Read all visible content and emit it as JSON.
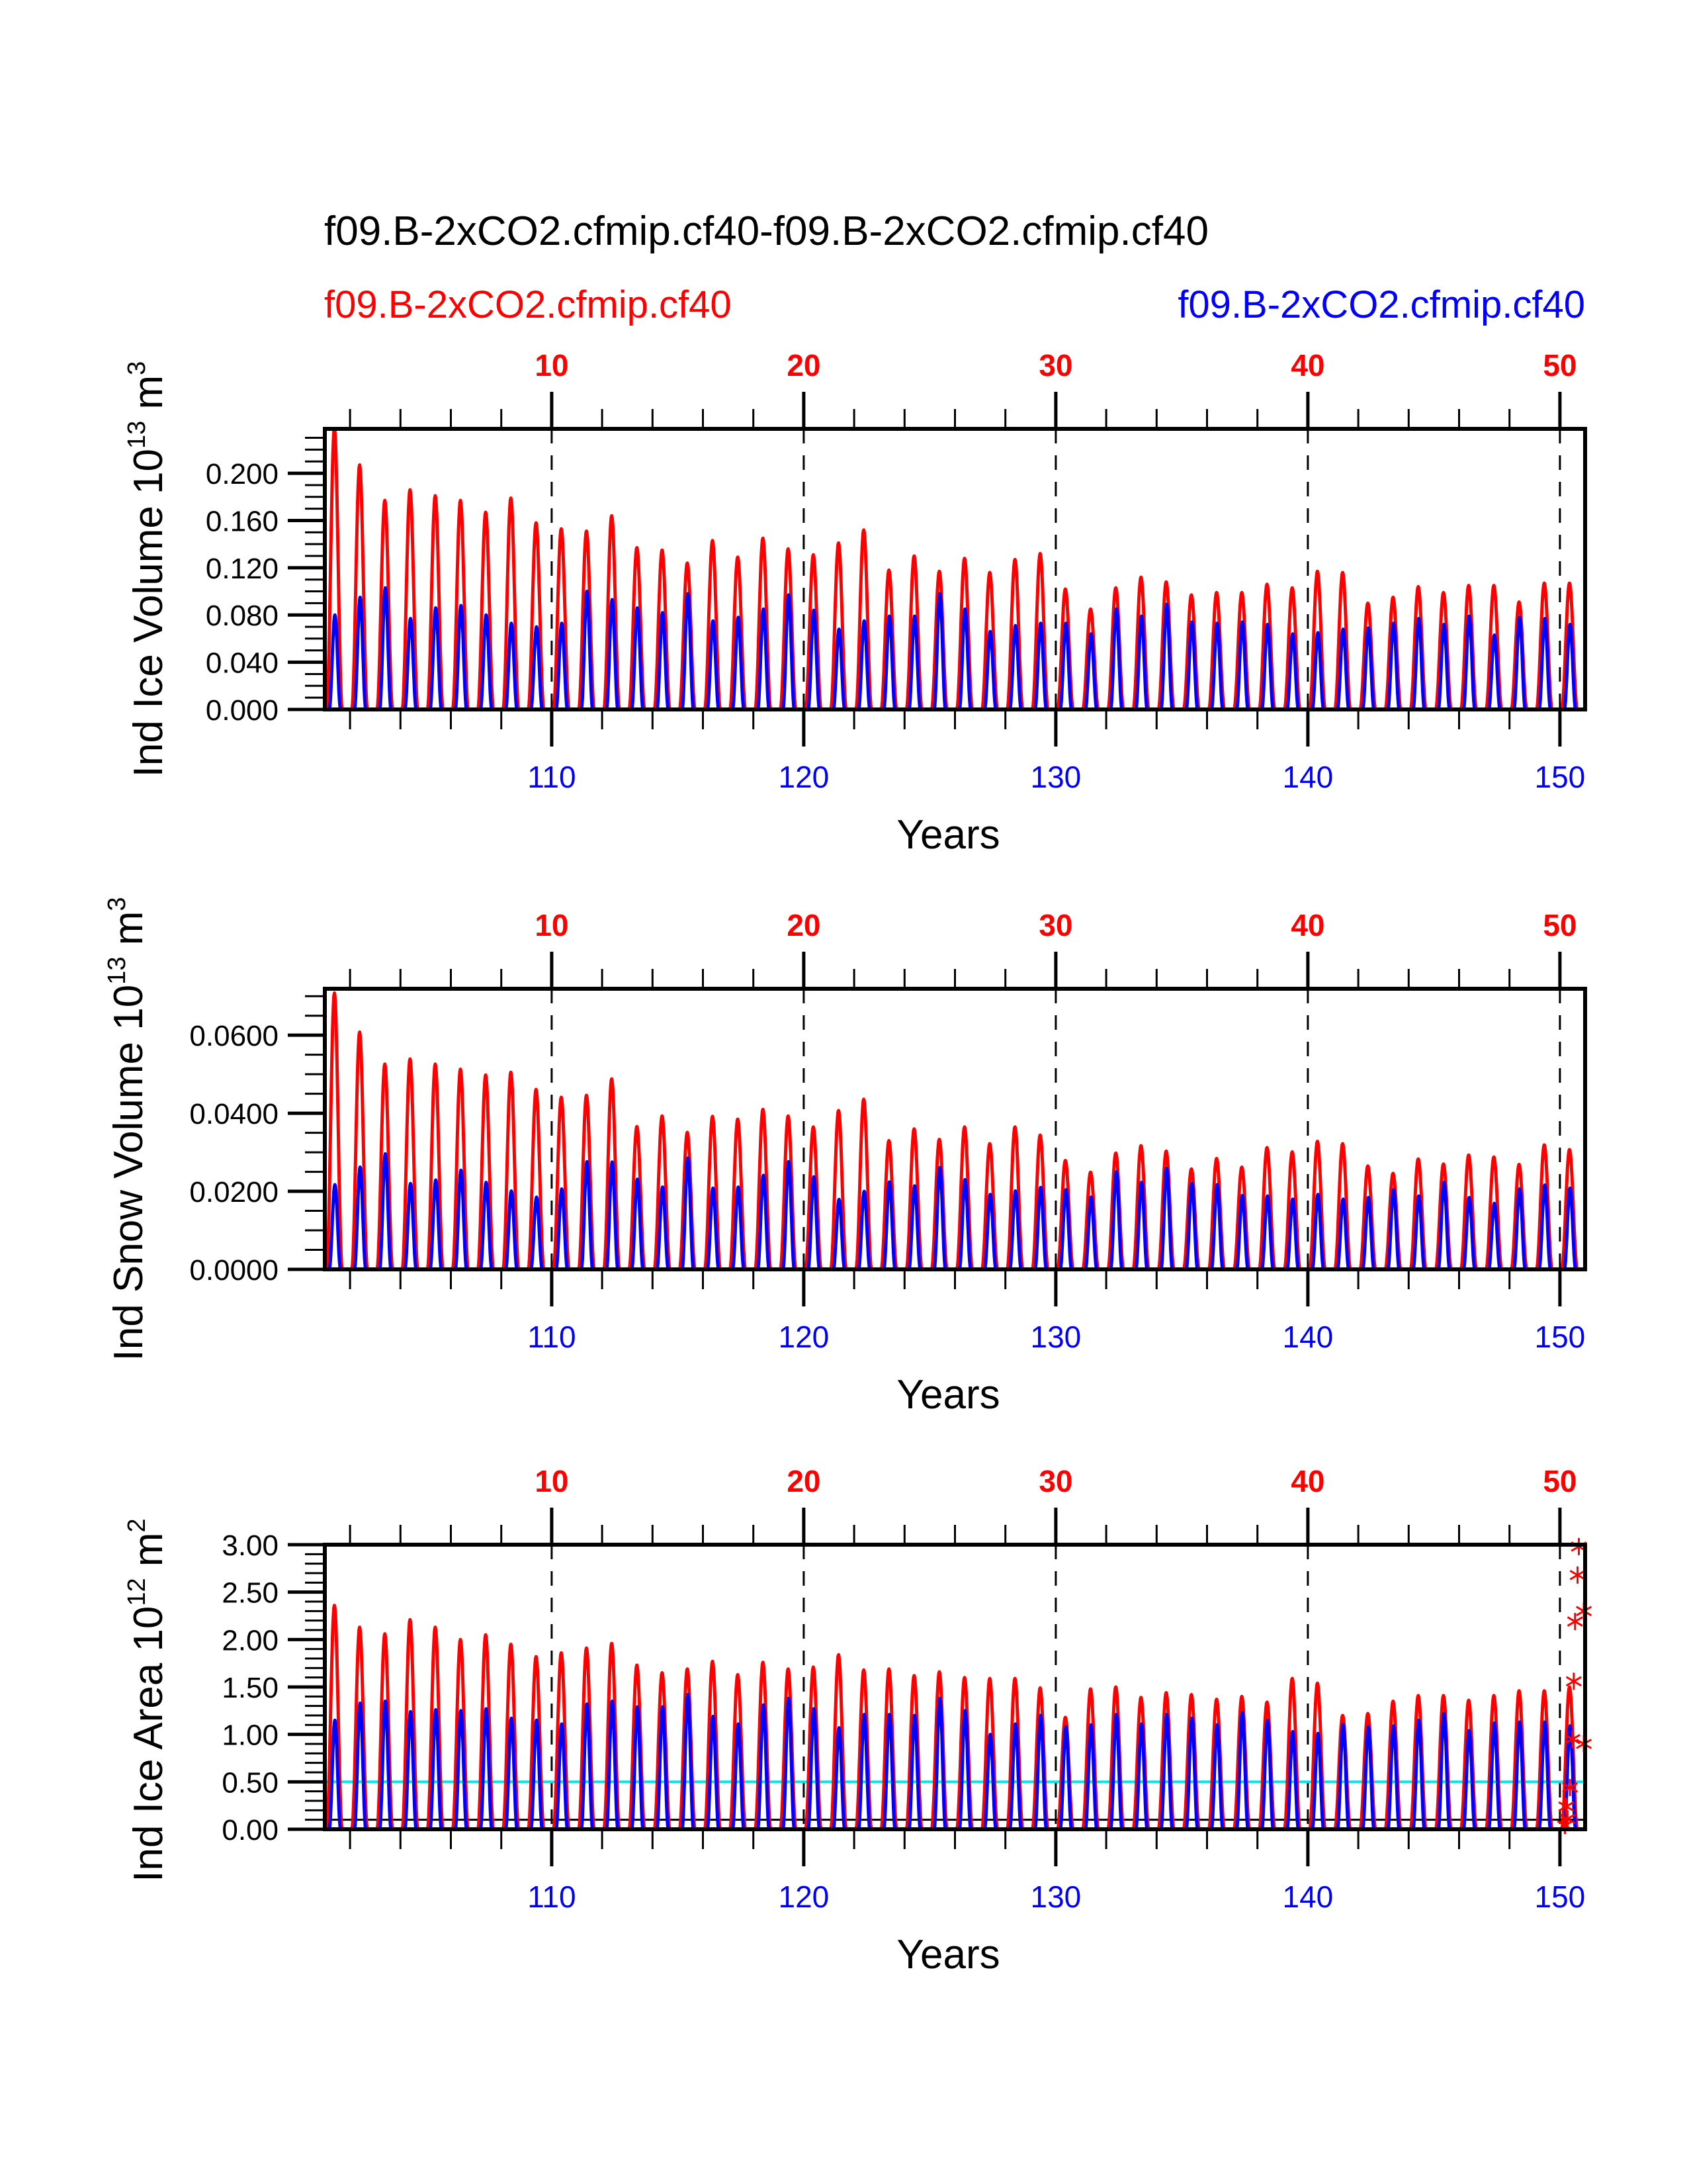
{
  "title": "f09.B-2xCO2.cfmip.cf40-f09.B-2xCO2.cfmip.cf40",
  "legend": {
    "left": {
      "label": "f09.B-2xCO2.cfmip.cf40",
      "color": "#ff0000"
    },
    "right": {
      "label": "f09.B-2xCO2.cfmip.cf40",
      "color": "#0000ff"
    }
  },
  "chart_data": [
    {
      "type": "line",
      "title": "",
      "ylabel": "Ind Ice Volume 10^13 m^3",
      "ylabel_parts": {
        "base": "Ind Ice Volume 10",
        "exp": "13",
        "unit": " m",
        "unit_exp": "3"
      },
      "xlabel": "Years",
      "xlim": [
        101,
        151
      ],
      "ylim": [
        0,
        0.2376
      ],
      "yticks": [
        "0.000",
        "0.040",
        "0.080",
        "0.120",
        "0.160",
        "0.200"
      ],
      "ytick_values": [
        0,
        0.04,
        0.08,
        0.12,
        0.16,
        0.2
      ],
      "yminor_step": 0.01,
      "top_axis": {
        "color": "#ff0000",
        "ticks": [
          "10",
          "20",
          "30",
          "40",
          "50"
        ],
        "tick_years": [
          110,
          120,
          130,
          140,
          150
        ]
      },
      "bottom_axis": {
        "color": "#0000ff",
        "ticks": [
          "110",
          "120",
          "130",
          "140",
          "150"
        ],
        "tick_values": [
          110,
          120,
          130,
          140,
          150
        ]
      },
      "dashed_vlines": [
        110,
        120,
        130,
        140,
        150
      ],
      "series": [
        {
          "name": "f09.B-2xCO2.cfmip.cf40 (red)",
          "color": "#ff0000",
          "annual_peaks": [
            0.238,
            0.207,
            0.177,
            0.186,
            0.181,
            0.177,
            0.167,
            0.179,
            0.158,
            0.153,
            0.151,
            0.164,
            0.137,
            0.135,
            0.124,
            0.143,
            0.129,
            0.145,
            0.136,
            0.131,
            0.141,
            0.152,
            0.118,
            0.13,
            0.117,
            0.128,
            0.116,
            0.127,
            0.132,
            0.102,
            0.085,
            0.103,
            0.112,
            0.108,
            0.097,
            0.099,
            0.099,
            0.106,
            0.103,
            0.117,
            0.116,
            0.09,
            0.095,
            0.104,
            0.099,
            0.105,
            0.105,
            0.091,
            0.107,
            0.107
          ]
        },
        {
          "name": "f09.B-2xCO2.cfmip.cf40 (blue)",
          "color": "#0000ff",
          "annual_peaks": [
            0.08,
            0.095,
            0.103,
            0.077,
            0.086,
            0.088,
            0.08,
            0.073,
            0.07,
            0.073,
            0.1,
            0.093,
            0.086,
            0.082,
            0.098,
            0.075,
            0.078,
            0.085,
            0.097,
            0.084,
            0.068,
            0.075,
            0.079,
            0.079,
            0.098,
            0.085,
            0.066,
            0.071,
            0.073,
            0.073,
            0.064,
            0.085,
            0.079,
            0.089,
            0.074,
            0.073,
            0.074,
            0.072,
            0.064,
            0.065,
            0.068,
            0.069,
            0.073,
            0.077,
            0.072,
            0.079,
            0.063,
            0.078,
            0.077,
            0.072
          ]
        }
      ]
    },
    {
      "type": "line",
      "title": "",
      "ylabel": "Ind Snow Volume 10^13 m^3",
      "ylabel_parts": {
        "base": "Ind Snow Volume 10",
        "exp": "13",
        "unit": " m",
        "unit_exp": "3"
      },
      "xlabel": "Years",
      "xlim": [
        101,
        151
      ],
      "ylim": [
        0,
        0.0719
      ],
      "yticks": [
        "0.0000",
        "0.0200",
        "0.0400",
        "0.0600"
      ],
      "ytick_values": [
        0,
        0.02,
        0.04,
        0.06
      ],
      "yminor_step": 0.005,
      "top_axis": {
        "color": "#ff0000",
        "ticks": [
          "10",
          "20",
          "30",
          "40",
          "50"
        ],
        "tick_years": [
          110,
          120,
          130,
          140,
          150
        ]
      },
      "bottom_axis": {
        "color": "#0000ff",
        "ticks": [
          "110",
          "120",
          "130",
          "140",
          "150"
        ],
        "tick_values": [
          110,
          120,
          130,
          140,
          150
        ]
      },
      "dashed_vlines": [
        110,
        120,
        130,
        140,
        150
      ],
      "series": [
        {
          "name": "f09.B-2xCO2.cfmip.cf40 (red)",
          "color": "#ff0000",
          "annual_peaks": [
            0.0708,
            0.0608,
            0.0526,
            0.0539,
            0.0526,
            0.0513,
            0.0498,
            0.0505,
            0.0461,
            0.0441,
            0.0446,
            0.0488,
            0.0366,
            0.0393,
            0.0351,
            0.0392,
            0.0385,
            0.041,
            0.0393,
            0.0365,
            0.0407,
            0.0436,
            0.033,
            0.036,
            0.0333,
            0.0365,
            0.0322,
            0.0365,
            0.0344,
            0.0279,
            0.0249,
            0.0298,
            0.0317,
            0.0303,
            0.0257,
            0.0284,
            0.0262,
            0.0312,
            0.0301,
            0.0328,
            0.0322,
            0.0265,
            0.0246,
            0.0283,
            0.027,
            0.0293,
            0.0288,
            0.0269,
            0.0319,
            0.0307
          ]
        },
        {
          "name": "f09.B-2xCO2.cfmip.cf40 (blue)",
          "color": "#0000ff",
          "annual_peaks": [
            0.0217,
            0.0262,
            0.0296,
            0.022,
            0.0229,
            0.0254,
            0.0223,
            0.0201,
            0.0185,
            0.0206,
            0.0276,
            0.0275,
            0.0231,
            0.0211,
            0.0285,
            0.0208,
            0.0211,
            0.0241,
            0.0276,
            0.0237,
            0.0179,
            0.02,
            0.0224,
            0.0214,
            0.0261,
            0.023,
            0.0192,
            0.0201,
            0.021,
            0.0204,
            0.0185,
            0.025,
            0.0223,
            0.0259,
            0.022,
            0.0217,
            0.0189,
            0.0188,
            0.018,
            0.0192,
            0.018,
            0.0184,
            0.0204,
            0.0188,
            0.0223,
            0.0184,
            0.0169,
            0.0206,
            0.0216,
            0.0208
          ]
        }
      ]
    },
    {
      "type": "line",
      "title": "",
      "ylabel": "Ind Ice Area 10^12 m^2",
      "ylabel_parts": {
        "base": "Ind Ice Area 10",
        "exp": "12",
        "unit": " m",
        "unit_exp": "2"
      },
      "xlabel": "Years",
      "xlim": [
        101,
        151
      ],
      "ylim": [
        0,
        3.0
      ],
      "yticks": [
        "0.00",
        "0.50",
        "1.00",
        "1.50",
        "2.00",
        "2.50",
        "3.00"
      ],
      "ytick_values": [
        0,
        0.5,
        1.0,
        1.5,
        2.0,
        2.5,
        3.0
      ],
      "yminor_step": 0.1,
      "top_axis": {
        "color": "#ff0000",
        "ticks": [
          "10",
          "20",
          "30",
          "40",
          "50"
        ],
        "tick_years": [
          110,
          120,
          130,
          140,
          150
        ]
      },
      "bottom_axis": {
        "color": "#0000ff",
        "ticks": [
          "110",
          "120",
          "130",
          "140",
          "150"
        ],
        "tick_values": [
          110,
          120,
          130,
          140,
          150
        ]
      },
      "dashed_vlines": [
        110,
        120,
        130,
        140,
        150
      ],
      "reference_lines": [
        {
          "value": 0.5,
          "color": "#00e5ee"
        },
        {
          "value": 0.1,
          "color": "#000000"
        }
      ],
      "series": [
        {
          "name": "f09.B-2xCO2.cfmip.cf40 (red)",
          "color": "#ff0000",
          "annual_peaks": [
            2.36,
            2.13,
            2.06,
            2.21,
            2.13,
            2.0,
            2.05,
            1.95,
            1.82,
            1.86,
            1.91,
            1.96,
            1.73,
            1.65,
            1.69,
            1.77,
            1.63,
            1.76,
            1.69,
            1.71,
            1.84,
            1.68,
            1.69,
            1.62,
            1.66,
            1.6,
            1.59,
            1.59,
            1.49,
            1.18,
            1.48,
            1.5,
            1.39,
            1.44,
            1.42,
            1.37,
            1.4,
            1.34,
            1.59,
            1.54,
            1.2,
            1.22,
            1.35,
            1.41,
            1.41,
            1.36,
            1.41,
            1.46,
            1.46,
            1.5
          ]
        },
        {
          "name": "f09.B-2xCO2.cfmip.cf40 (blue)",
          "color": "#0000ff",
          "annual_peaks": [
            1.15,
            1.33,
            1.35,
            1.24,
            1.26,
            1.25,
            1.27,
            1.17,
            1.15,
            1.11,
            1.32,
            1.35,
            1.29,
            1.29,
            1.42,
            1.19,
            1.11,
            1.31,
            1.38,
            1.27,
            1.07,
            1.21,
            1.21,
            1.2,
            1.38,
            1.25,
            1.0,
            1.11,
            1.2,
            1.08,
            1.1,
            1.21,
            1.11,
            1.21,
            1.17,
            1.1,
            1.23,
            1.15,
            1.03,
            1.01,
            1.1,
            1.08,
            1.09,
            1.15,
            1.22,
            1.04,
            1.12,
            1.13,
            1.13,
            1.09
          ]
        }
      ],
      "markers": {
        "symbol": "asterisk",
        "color": "#ff0000",
        "points": [
          {
            "x": 150.75,
            "y": 2.98
          },
          {
            "x": 150.7,
            "y": 2.68
          },
          {
            "x": 150.95,
            "y": 2.3
          },
          {
            "x": 150.6,
            "y": 2.19
          },
          {
            "x": 150.55,
            "y": 1.56
          },
          {
            "x": 150.5,
            "y": 0.95
          },
          {
            "x": 150.95,
            "y": 0.9
          },
          {
            "x": 150.4,
            "y": 0.44
          },
          {
            "x": 150.25,
            "y": 0.24
          },
          {
            "x": 150.3,
            "y": 0.11
          },
          {
            "x": 150.2,
            "y": 0.04
          }
        ]
      }
    }
  ]
}
